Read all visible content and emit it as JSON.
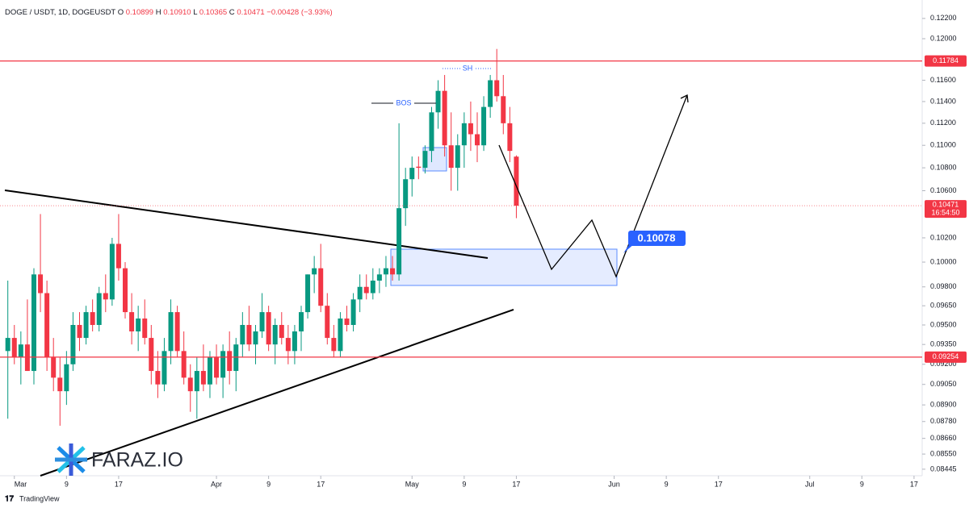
{
  "chart_data": {
    "type": "candlestick",
    "title": "DOGE / USDT, 1D, DOGEUSDT",
    "legend": [
      {
        "key": "O",
        "value": "0.10899"
      },
      {
        "key": "H",
        "value": "0.10910"
      },
      {
        "key": "L",
        "value": "0.10365"
      },
      {
        "key": "C",
        "value": "0.10471"
      }
    ],
    "change": "−0.00428 (−3.93%)",
    "log_scale": true,
    "grid": false,
    "up_color": "#089981",
    "down_color": "#f23645",
    "x": [
      -1,
      0,
      1,
      2,
      3,
      4,
      5,
      6,
      7,
      8,
      9,
      10,
      11,
      12,
      13,
      14,
      15,
      16,
      17,
      18,
      19,
      20,
      21,
      22,
      23,
      24,
      25,
      26,
      27,
      28,
      29,
      30,
      31,
      32,
      33,
      34,
      35,
      36,
      37,
      38,
      39,
      40,
      41,
      42,
      43,
      44,
      45,
      46,
      47,
      48,
      49,
      50,
      51,
      52,
      53,
      54,
      55,
      56,
      57,
      58,
      59,
      60,
      61,
      62,
      63,
      64,
      65,
      66,
      67,
      68,
      69,
      70,
      71,
      72,
      73,
      74,
      75,
      76,
      77
    ],
    "open": [
      0.093,
      0.094,
      0.0925,
      0.0935,
      0.0915,
      0.099,
      0.0975,
      0.0925,
      0.091,
      0.09,
      0.092,
      0.095,
      0.094,
      0.096,
      0.095,
      0.0975,
      0.097,
      0.1015,
      0.0995,
      0.096,
      0.0945,
      0.0955,
      0.094,
      0.0915,
      0.0905,
      0.093,
      0.096,
      0.093,
      0.091,
      0.09,
      0.0915,
      0.0905,
      0.0925,
      0.091,
      0.093,
      0.0915,
      0.0935,
      0.095,
      0.0935,
      0.0945,
      0.096,
      0.0935,
      0.095,
      0.094,
      0.093,
      0.0945,
      0.096,
      0.099,
      0.0995,
      0.0965,
      0.094,
      0.093,
      0.0955,
      0.095,
      0.097,
      0.098,
      0.0975,
      0.0985,
      0.099,
      0.0995,
      0.099,
      0.1045,
      0.107,
      0.1081,
      0.108,
      0.1095,
      0.113,
      0.115,
      0.11,
      0.108,
      0.11,
      0.112,
      0.111,
      0.11,
      0.1135,
      0.116,
      0.1145,
      0.112,
      0.10899
    ],
    "high": [
      0.0985,
      0.095,
      0.0945,
      0.097,
      0.0995,
      0.104,
      0.0985,
      0.094,
      0.0925,
      0.093,
      0.096,
      0.096,
      0.0965,
      0.097,
      0.098,
      0.099,
      0.102,
      0.104,
      0.1,
      0.0975,
      0.0965,
      0.097,
      0.095,
      0.093,
      0.094,
      0.097,
      0.0965,
      0.0945,
      0.092,
      0.0925,
      0.0935,
      0.093,
      0.0935,
      0.0935,
      0.0945,
      0.094,
      0.096,
      0.0965,
      0.095,
      0.0975,
      0.0965,
      0.0955,
      0.096,
      0.095,
      0.095,
      0.0965,
      0.099,
      0.1005,
      0.1015,
      0.0975,
      0.095,
      0.096,
      0.0965,
      0.0975,
      0.099,
      0.099,
      0.0995,
      0.0995,
      0.1005,
      0.1005,
      0.112,
      0.108,
      0.109,
      0.109,
      0.11,
      0.1135,
      0.116,
      0.1165,
      0.113,
      0.111,
      0.113,
      0.114,
      0.113,
      0.1145,
      0.1165,
      0.119,
      0.1165,
      0.1135,
      0.1091
    ],
    "low": [
      0.088,
      0.092,
      0.0905,
      0.0915,
      0.0905,
      0.096,
      0.0915,
      0.09,
      0.0875,
      0.089,
      0.0915,
      0.093,
      0.0935,
      0.0945,
      0.0945,
      0.096,
      0.0965,
      0.0985,
      0.0955,
      0.0935,
      0.093,
      0.0935,
      0.0905,
      0.0895,
      0.09,
      0.092,
      0.0925,
      0.0905,
      0.0885,
      0.088,
      0.09,
      0.0895,
      0.0905,
      0.0895,
      0.0905,
      0.09,
      0.0925,
      0.093,
      0.092,
      0.094,
      0.093,
      0.092,
      0.0935,
      0.092,
      0.092,
      0.093,
      0.0955,
      0.0975,
      0.096,
      0.0935,
      0.0925,
      0.0925,
      0.0945,
      0.0945,
      0.096,
      0.097,
      0.097,
      0.0975,
      0.098,
      0.0985,
      0.0985,
      0.103,
      0.1055,
      0.107,
      0.1075,
      0.1085,
      0.1115,
      0.109,
      0.106,
      0.106,
      0.108,
      0.1095,
      0.1085,
      0.1095,
      0.1125,
      0.114,
      0.111,
      0.1085,
      0.10365
    ],
    "close": [
      0.094,
      0.0925,
      0.0935,
      0.0915,
      0.099,
      0.0975,
      0.0925,
      0.091,
      0.09,
      0.092,
      0.095,
      0.094,
      0.096,
      0.095,
      0.0975,
      0.097,
      0.1015,
      0.0995,
      0.096,
      0.0945,
      0.0955,
      0.094,
      0.0915,
      0.0905,
      0.093,
      0.096,
      0.093,
      0.091,
      0.09,
      0.0915,
      0.0905,
      0.0925,
      0.091,
      0.093,
      0.0915,
      0.0935,
      0.095,
      0.0935,
      0.0945,
      0.096,
      0.0935,
      0.095,
      0.094,
      0.093,
      0.0945,
      0.096,
      0.099,
      0.0995,
      0.0965,
      0.094,
      0.093,
      0.0955,
      0.095,
      0.097,
      0.098,
      0.0975,
      0.0985,
      0.099,
      0.0995,
      0.099,
      0.1045,
      0.107,
      0.108,
      0.108,
      0.1095,
      0.113,
      0.115,
      0.11,
      0.108,
      0.11,
      0.112,
      0.111,
      0.11,
      0.1135,
      0.116,
      0.1145,
      0.112,
      0.1095,
      0.10471
    ],
    "xlim": [
      -2.2,
      139
    ],
    "xticks": [
      {
        "value": 0,
        "label": "Mar"
      },
      {
        "value": 8,
        "label": "9"
      },
      {
        "value": 16,
        "label": "17"
      },
      {
        "value": 31,
        "label": "Apr"
      },
      {
        "value": 39,
        "label": "9"
      },
      {
        "value": 47,
        "label": "17"
      },
      {
        "value": 61,
        "label": "May"
      },
      {
        "value": 69,
        "label": "9"
      },
      {
        "value": 77,
        "label": "17"
      },
      {
        "value": 92,
        "label": "Jun"
      },
      {
        "value": 100,
        "label": "9"
      },
      {
        "value": 108,
        "label": "17"
      },
      {
        "value": 122,
        "label": "Jul"
      },
      {
        "value": 130,
        "label": "9"
      },
      {
        "value": 138,
        "label": "17"
      }
    ],
    "ylim": [
      0.084,
      0.1232
    ],
    "yticks": [
      {
        "value": 0.122,
        "label": "0.12200"
      },
      {
        "value": 0.12,
        "label": "0.12000"
      },
      {
        "value": 0.116,
        "label": "0.11600"
      },
      {
        "value": 0.114,
        "label": "0.11400"
      },
      {
        "value": 0.112,
        "label": "0.11200"
      },
      {
        "value": 0.11,
        "label": "0.11000"
      },
      {
        "value": 0.108,
        "label": "0.10800"
      },
      {
        "value": 0.106,
        "label": "0.10600"
      },
      {
        "value": 0.102,
        "label": "0.10200"
      },
      {
        "value": 0.1,
        "label": "0.10000"
      },
      {
        "value": 0.098,
        "label": "0.09800"
      },
      {
        "value": 0.0965,
        "label": "0.09650"
      },
      {
        "value": 0.095,
        "label": "0.09500"
      },
      {
        "value": 0.0935,
        "label": "0.09350"
      },
      {
        "value": 0.092,
        "label": "0.09200"
      },
      {
        "value": 0.0905,
        "label": "0.09050"
      },
      {
        "value": 0.089,
        "label": "0.08900"
      },
      {
        "value": 0.0878,
        "label": "0.08780"
      },
      {
        "value": 0.0866,
        "label": "0.08660"
      },
      {
        "value": 0.0855,
        "label": "0.08550"
      },
      {
        "value": 0.08445,
        "label": "0.08445"
      }
    ],
    "levels": [
      {
        "value": 0.11784,
        "label": "0.11784",
        "color": "#f23645"
      },
      {
        "value": 0.09254,
        "label": "0.09254",
        "color": "#f23645"
      }
    ],
    "last_price": {
      "value": 0.10471,
      "label": "0.10471",
      "countdown": "16:54:50",
      "color": "#f23645"
    },
    "annotations": [
      "BOS",
      "SH",
      "0.10078"
    ],
    "watermark": "FARAZ.IO",
    "footer": "TradingView"
  }
}
